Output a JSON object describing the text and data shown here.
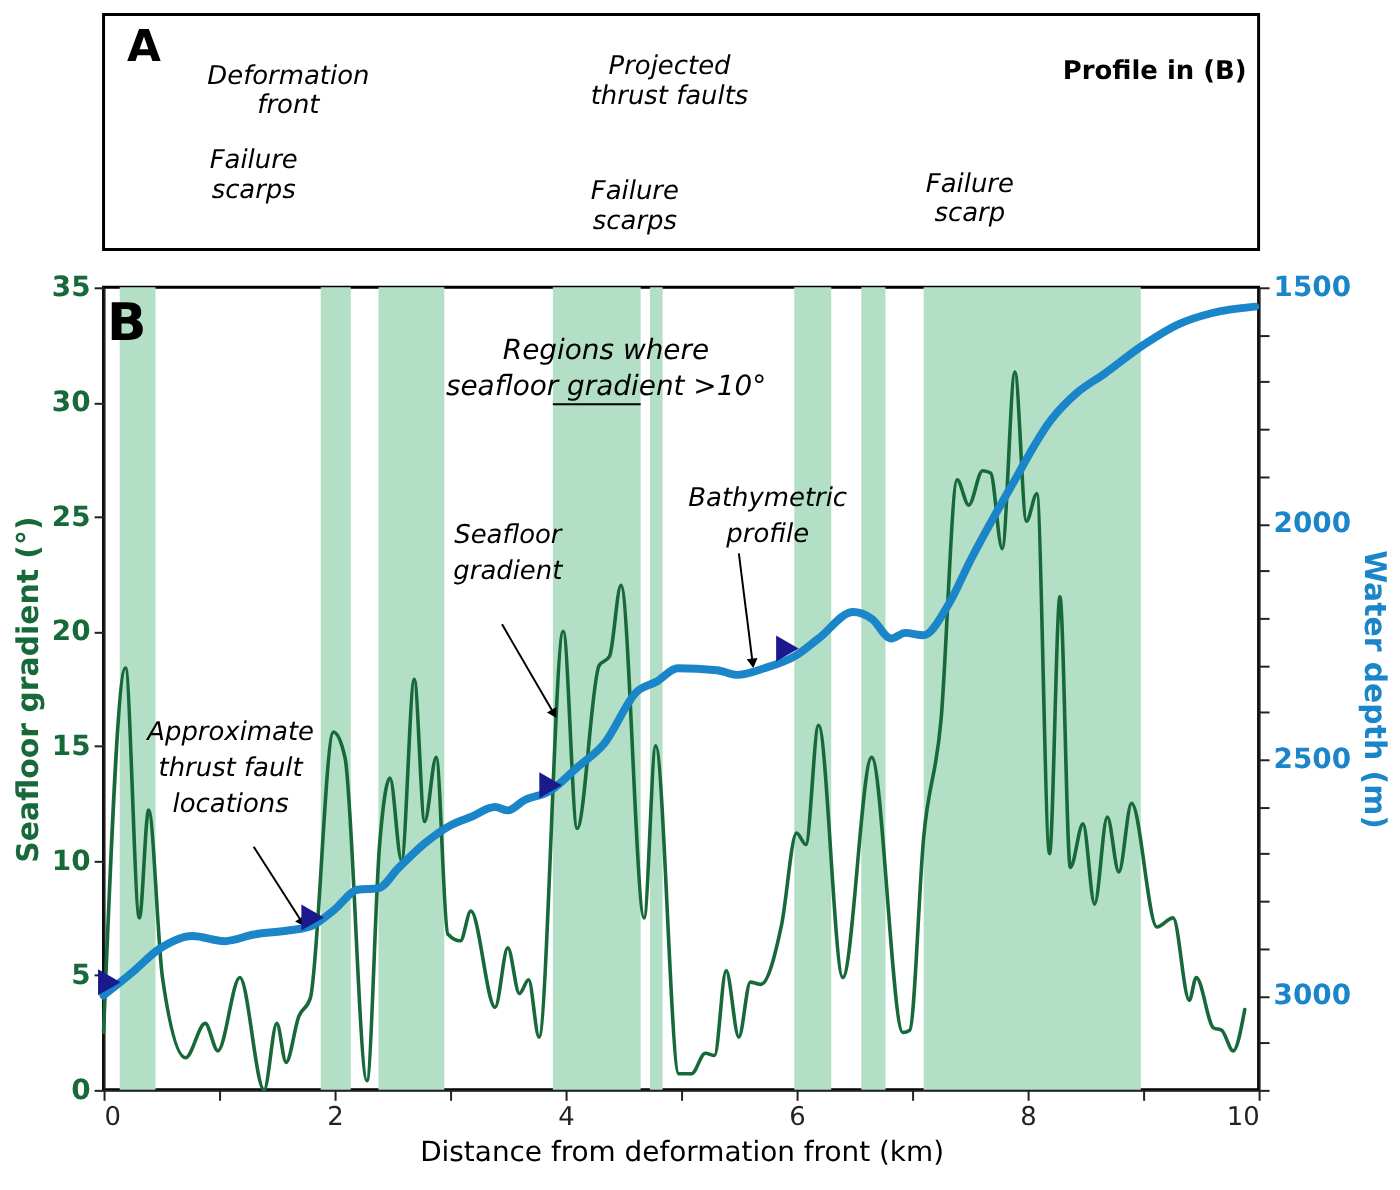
{
  "chart_data": [
    {
      "type": "other",
      "annotations": [
        "A",
        "Deformation\nfront",
        "Failure\nscarps",
        "Projected\nthrust faults",
        "Failure\nscarps",
        "Failure\nscarp",
        "Profile in (B)"
      ]
    },
    {
      "type": "line",
      "annotations": [
        "B",
        "Regions where\nseafloor gradient >10°"
      ],
      "xlabel": "Distance from deformation front (km)",
      "ylabel": "Seafloor gradient (°)",
      "y2label": "Water depth (m)",
      "xlim": [
        0,
        10
      ],
      "xticks": [
        0,
        {
          "value": 1,
          "label": null
        },
        2,
        {
          "value": 3,
          "label": null
        },
        4,
        {
          "value": 5,
          "label": null
        },
        6,
        {
          "value": 7,
          "label": null
        },
        8,
        {
          "value": 9,
          "label": null
        },
        10
      ],
      "ylim": [
        0,
        35
      ],
      "yticks": [
        0,
        5,
        10,
        15,
        20,
        25,
        30,
        35
      ],
      "y2lim": [
        3200,
        1500
      ],
      "y2ticks": [
        1500,
        {
          "value": 1600,
          "label": null
        },
        {
          "value": 1700,
          "label": null
        },
        {
          "value": 1800,
          "label": null
        },
        {
          "value": 1900,
          "label": null
        },
        2000,
        {
          "value": 2100,
          "label": null
        },
        {
          "value": 2200,
          "label": null
        },
        {
          "value": 2300,
          "label": null
        },
        {
          "value": 2400,
          "label": null
        },
        2500,
        {
          "value": 2600,
          "label": null
        },
        {
          "value": 2700,
          "label": null
        },
        {
          "value": 2800,
          "label": null
        },
        {
          "value": 2900,
          "label": null
        },
        3000,
        {
          "value": 3100,
          "label": null
        },
        {
          "value": 3200,
          "label": null
        }
      ],
      "bands": [
        {
          "axis": "x",
          "from": 0.14,
          "to": 0.45,
          "color": "#b3dfc6"
        },
        {
          "axis": "x",
          "from": 1.88,
          "to": 2.14,
          "color": "#b3dfc6"
        },
        {
          "axis": "x",
          "from": 2.38,
          "to": 2.95,
          "color": "#b3dfc6"
        },
        {
          "axis": "x",
          "from": 3.89,
          "to": 4.65,
          "color": "#b3dfc6"
        },
        {
          "axis": "x",
          "from": 4.73,
          "to": 4.84,
          "color": "#b3dfc6"
        },
        {
          "axis": "x",
          "from": 5.98,
          "to": 6.3,
          "color": "#b3dfc6"
        },
        {
          "axis": "x",
          "from": 6.56,
          "to": 6.77,
          "color": "#b3dfc6"
        },
        {
          "axis": "x",
          "from": 7.1,
          "to": 8.98,
          "color": "#b3dfc6"
        }
      ],
      "series": [
        {
          "name": "Seafloor\ngradient",
          "type": "line",
          "axis": "y",
          "color": "#17693a",
          "line_style": "solid",
          "x": [
            0,
            0.19,
            0.31,
            0.39,
            0.51,
            0.71,
            0.88,
            0.99,
            1.18,
            1.39,
            1.5,
            1.58,
            1.69,
            1.79,
            1.99,
            2.09,
            2.28,
            2.39,
            2.48,
            2.58,
            2.69,
            2.78,
            2.88,
            2.98,
            3.09,
            3.18,
            3.39,
            3.5,
            3.6,
            3.68,
            3.77,
            3.98,
            4.1,
            4.29,
            4.38,
            4.48,
            4.68,
            4.78,
            4.98,
            5.09,
            5.21,
            5.29,
            5.39,
            5.5,
            5.6,
            5.69,
            5.87,
            6.0,
            6.08,
            6.19,
            6.4,
            6.65,
            6.92,
            6.98,
            7.1,
            7.25,
            7.39,
            7.49,
            7.61,
            7.68,
            7.78,
            7.89,
            7.99,
            8.08,
            8.19,
            8.28,
            8.37,
            8.48,
            8.58,
            8.69,
            8.79,
            8.9,
            9.12,
            9.26,
            9.4,
            9.46,
            9.61,
            9.68,
            9.78,
            9.88
          ],
          "values": [
            2.5,
            18.4,
            7.5,
            12.2,
            4.9,
            1.4,
            2.9,
            1.7,
            4.9,
            0,
            2.9,
            1.2,
            3.2,
            4.0,
            15.6,
            14.5,
            0.4,
            10.7,
            13.6,
            10.0,
            17.9,
            11.7,
            14.5,
            6.8,
            6.5,
            7.8,
            3.6,
            6.2,
            4.2,
            4.8,
            2.3,
            20.0,
            11.4,
            18.5,
            18.9,
            22.0,
            7.5,
            15.0,
            0.7,
            0.7,
            1.6,
            1.5,
            5.2,
            2.3,
            4.7,
            4.6,
            7.2,
            11.2,
            10.7,
            15.9,
            4.9,
            14.5,
            2.5,
            2.6,
            11.0,
            16.1,
            26.6,
            25.5,
            27.0,
            26.9,
            23.6,
            31.3,
            24.8,
            26.0,
            10.3,
            21.5,
            9.7,
            11.6,
            8.1,
            11.9,
            9.5,
            12.5,
            7.1,
            7.5,
            3.9,
            4.9,
            2.7,
            2.6,
            1.7,
            3.5
          ]
        },
        {
          "name": "Bathymetric\nprofile",
          "type": "line",
          "axis": "y2",
          "color": "#1a85c8",
          "line_style": "solid",
          "x": [
            0,
            0.25,
            0.48,
            0.77,
            1.05,
            1.3,
            1.61,
            1.8,
            2.0,
            2.2,
            2.38,
            2.55,
            2.78,
            3.01,
            3.18,
            3.39,
            3.5,
            3.64,
            3.87,
            4.1,
            4.33,
            4.62,
            4.79,
            4.97,
            5.31,
            5.49,
            5.72,
            6.0,
            6.19,
            6.49,
            6.65,
            6.82,
            6.94,
            7.1,
            7.31,
            7.51,
            7.86,
            8.2,
            8.43,
            8.66,
            9.01,
            9.3,
            9.59,
            9.97
          ],
          "values": [
            3000,
            2951,
            2902,
            2874,
            2885,
            2871,
            2862,
            2853,
            2818,
            2776,
            2773,
            2731,
            2678,
            2639,
            2622,
            2601,
            2608,
            2587,
            2566,
            2517,
            2468,
            2356,
            2335,
            2307,
            2311,
            2321,
            2307,
            2279,
            2244,
            2188,
            2202,
            2244,
            2232,
            2237,
            2174,
            2076,
            1921,
            1782,
            1723,
            1684,
            1621,
            1579,
            1555,
            1541
          ]
        },
        {
          "name": "Approximate\nthrust fault\nlocations",
          "type": "scatter",
          "axis": "y2",
          "color": "#1a1a8c",
          "marker": "triangle",
          "x": [
            0.05,
            1.81,
            3.87,
            5.92
          ],
          "values": [
            2972,
            2835,
            2555,
            2265
          ]
        }
      ]
    }
  ]
}
